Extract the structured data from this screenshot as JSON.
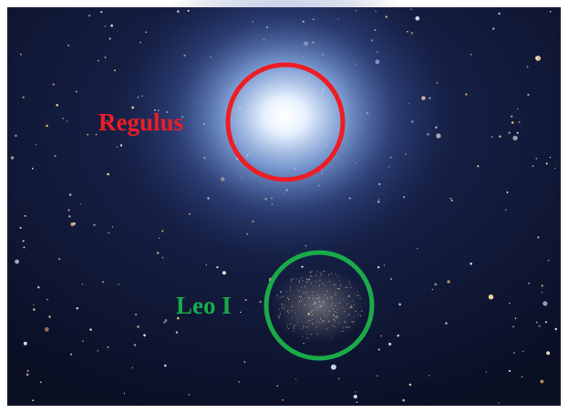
{
  "annotations": [
    {
      "label": "Regulus"
    },
    {
      "label": "Leo I"
    }
  ]
}
